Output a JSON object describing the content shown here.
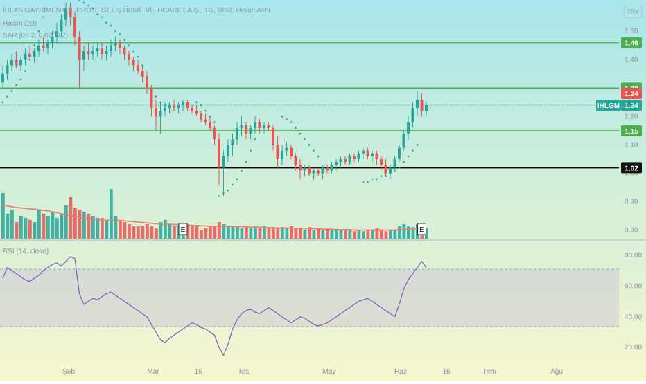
{
  "legend": {
    "title": "İHLAS GAYRİMENKUL PROJE GELİŞTİRME VE TİCARET A.Ş., 1G, BIST, Heikin Ashi",
    "volume": "Hacim (20)",
    "sar": "SAR (0.02, 0.02, 0.2)",
    "rsi": "RSI (14, close)"
  },
  "currency": "TRY",
  "colors": {
    "up": "#26a69a",
    "down": "#ef5350",
    "horizontal_line": "#4caf50",
    "support_line": "#000000",
    "volume_ma": "#ef7c6a",
    "rsi_line": "#7e57c2",
    "sar_dots": "#26a69a"
  },
  "chart_data": [
    {
      "type": "candlestick",
      "ticker": "IHLGM",
      "x_ticks": [
        "Şub",
        "Mar",
        "16",
        "Nis",
        "May",
        "Haz",
        "16",
        "Tem",
        "Ağu"
      ],
      "y_ticks": [
        "1.50",
        "1.40",
        "1.30",
        "1.20",
        "1.10",
        "1.00",
        "0.90",
        "0.80"
      ],
      "ylim": [
        0.77,
        1.61
      ],
      "horizontal_lines": [
        {
          "value": 1.46,
          "label": "1.46",
          "kind": "resistance"
        },
        {
          "value": 1.3,
          "label": "1.30",
          "kind": "resistance"
        },
        {
          "value": 1.15,
          "label": "1.15",
          "kind": "support"
        },
        {
          "value": 1.02,
          "label": "1.02",
          "kind": "major-support"
        }
      ],
      "price_labels": [
        {
          "value": 1.24,
          "label": "1.24",
          "kind": "last-price"
        },
        {
          "value": 1.24,
          "label": "1.24",
          "kind": "ticker-price"
        }
      ],
      "candles": {
        "columns": [
          "open",
          "high",
          "low",
          "close"
        ],
        "rows": [
          [
            1.32,
            1.38,
            1.3,
            1.35
          ],
          [
            1.35,
            1.4,
            1.33,
            1.38
          ],
          [
            1.38,
            1.42,
            1.36,
            1.4
          ],
          [
            1.4,
            1.43,
            1.37,
            1.38
          ],
          [
            1.38,
            1.41,
            1.36,
            1.4
          ],
          [
            1.4,
            1.44,
            1.38,
            1.42
          ],
          [
            1.42,
            1.45,
            1.4,
            1.41
          ],
          [
            1.41,
            1.44,
            1.39,
            1.43
          ],
          [
            1.43,
            1.47,
            1.41,
            1.45
          ],
          [
            1.45,
            1.48,
            1.43,
            1.44
          ],
          [
            1.44,
            1.47,
            1.42,
            1.46
          ],
          [
            1.46,
            1.5,
            1.44,
            1.48
          ],
          [
            1.48,
            1.53,
            1.46,
            1.5
          ],
          [
            1.5,
            1.56,
            1.48,
            1.54
          ],
          [
            1.54,
            1.6,
            1.52,
            1.58
          ],
          [
            1.58,
            1.6,
            1.52,
            1.55
          ],
          [
            1.55,
            1.57,
            1.45,
            1.48
          ],
          [
            1.48,
            1.5,
            1.3,
            1.4
          ],
          [
            1.4,
            1.45,
            1.36,
            1.43
          ],
          [
            1.43,
            1.46,
            1.4,
            1.42
          ],
          [
            1.42,
            1.45,
            1.4,
            1.43
          ],
          [
            1.43,
            1.46,
            1.41,
            1.44
          ],
          [
            1.44,
            1.46,
            1.4,
            1.42
          ],
          [
            1.42,
            1.45,
            1.4,
            1.43
          ],
          [
            1.43,
            1.47,
            1.41,
            1.45
          ],
          [
            1.45,
            1.48,
            1.43,
            1.46
          ],
          [
            1.46,
            1.47,
            1.42,
            1.44
          ],
          [
            1.44,
            1.45,
            1.4,
            1.42
          ],
          [
            1.42,
            1.43,
            1.38,
            1.4
          ],
          [
            1.4,
            1.41,
            1.36,
            1.38
          ],
          [
            1.38,
            1.4,
            1.35,
            1.36
          ],
          [
            1.36,
            1.38,
            1.32,
            1.34
          ],
          [
            1.34,
            1.36,
            1.28,
            1.3
          ],
          [
            1.3,
            1.31,
            1.2,
            1.23
          ],
          [
            1.23,
            1.26,
            1.15,
            1.2
          ],
          [
            1.2,
            1.25,
            1.14,
            1.22
          ],
          [
            1.22,
            1.25,
            1.2,
            1.23
          ],
          [
            1.23,
            1.25,
            1.21,
            1.24
          ],
          [
            1.24,
            1.26,
            1.22,
            1.23
          ],
          [
            1.23,
            1.25,
            1.21,
            1.24
          ],
          [
            1.24,
            1.26,
            1.22,
            1.25
          ],
          [
            1.25,
            1.26,
            1.22,
            1.23
          ],
          [
            1.23,
            1.24,
            1.21,
            1.22
          ],
          [
            1.22,
            1.24,
            1.2,
            1.21
          ],
          [
            1.21,
            1.22,
            1.18,
            1.19
          ],
          [
            1.19,
            1.21,
            1.17,
            1.18
          ],
          [
            1.18,
            1.2,
            1.15,
            1.16
          ],
          [
            1.16,
            1.17,
            1.1,
            1.12
          ],
          [
            1.12,
            1.14,
            0.96,
            1.02
          ],
          [
            1.02,
            1.08,
            0.92,
            1.06
          ],
          [
            1.06,
            1.12,
            1.04,
            1.1
          ],
          [
            1.1,
            1.14,
            1.06,
            1.12
          ],
          [
            1.12,
            1.18,
            1.1,
            1.16
          ],
          [
            1.16,
            1.2,
            1.13,
            1.17
          ],
          [
            1.17,
            1.18,
            1.12,
            1.14
          ],
          [
            1.14,
            1.17,
            1.12,
            1.16
          ],
          [
            1.16,
            1.2,
            1.14,
            1.18
          ],
          [
            1.18,
            1.19,
            1.14,
            1.16
          ],
          [
            1.16,
            1.18,
            1.14,
            1.17
          ],
          [
            1.17,
            1.18,
            1.15,
            1.16
          ],
          [
            1.16,
            1.17,
            1.08,
            1.1
          ],
          [
            1.1,
            1.13,
            1.02,
            1.05
          ],
          [
            1.05,
            1.1,
            1.03,
            1.08
          ],
          [
            1.08,
            1.11,
            1.06,
            1.09
          ],
          [
            1.09,
            1.1,
            1.05,
            1.06
          ],
          [
            1.06,
            1.07,
            1.01,
            1.03
          ],
          [
            1.03,
            1.05,
            0.98,
            1.01
          ],
          [
            1.01,
            1.03,
            0.99,
            1.02
          ],
          [
            1.02,
            1.03,
            0.99,
            1.0
          ],
          [
            1.0,
            1.02,
            0.98,
            1.01
          ],
          [
            1.01,
            1.02,
            0.99,
            1.0
          ],
          [
            1.0,
            1.03,
            0.98,
            1.02
          ],
          [
            1.02,
            1.03,
            1.0,
            1.01
          ],
          [
            1.01,
            1.04,
            1.0,
            1.03
          ],
          [
            1.03,
            1.05,
            1.01,
            1.04
          ],
          [
            1.04,
            1.06,
            1.02,
            1.05
          ],
          [
            1.05,
            1.06,
            1.03,
            1.04
          ],
          [
            1.04,
            1.07,
            1.03,
            1.06
          ],
          [
            1.06,
            1.07,
            1.04,
            1.05
          ],
          [
            1.05,
            1.08,
            1.04,
            1.07
          ],
          [
            1.07,
            1.09,
            1.05,
            1.08
          ],
          [
            1.08,
            1.09,
            1.05,
            1.06
          ],
          [
            1.06,
            1.08,
            1.04,
            1.07
          ],
          [
            1.07,
            1.08,
            1.03,
            1.05
          ],
          [
            1.05,
            1.06,
            1.01,
            1.03
          ],
          [
            1.03,
            1.05,
            0.99,
            1.0
          ],
          [
            1.0,
            1.03,
            0.98,
            1.02
          ],
          [
            1.02,
            1.06,
            1.01,
            1.05
          ],
          [
            1.05,
            1.1,
            1.04,
            1.09
          ],
          [
            1.09,
            1.15,
            1.08,
            1.14
          ],
          [
            1.14,
            1.2,
            1.12,
            1.18
          ],
          [
            1.18,
            1.25,
            1.16,
            1.23
          ],
          [
            1.23,
            1.29,
            1.2,
            1.26
          ],
          [
            1.26,
            1.28,
            1.2,
            1.22
          ],
          [
            1.22,
            1.25,
            1.2,
            1.24
          ]
        ]
      },
      "sar": [
        1.25,
        1.27,
        1.29,
        1.31,
        1.33,
        1.36,
        1.4,
        1.45,
        1.5,
        1.55,
        null,
        null,
        null,
        null,
        null,
        null,
        1.62,
        1.61,
        1.6,
        1.59,
        1.58,
        1.56,
        1.55,
        1.53,
        1.52,
        1.5,
        1.49,
        1.47,
        1.45,
        1.43,
        1.41,
        1.38,
        1.34,
        1.3,
        1.27,
        1.25,
        1.24,
        null,
        null,
        null,
        null,
        null,
        null,
        1.25,
        1.24,
        1.22,
        1.2,
        1.18,
        0.92,
        0.93,
        0.94,
        0.96,
        0.98,
        1.01,
        1.04,
        1.08,
        1.12,
        null,
        null,
        null,
        null,
        null,
        1.2,
        1.19,
        1.18,
        1.16,
        1.14,
        1.12,
        1.1,
        1.08,
        1.06,
        null,
        null,
        null,
        null,
        null,
        null,
        null,
        null,
        null,
        0.97,
        0.97,
        0.98,
        0.98,
        0.99,
        0.99,
        1.0,
        1.01,
        1.02,
        1.04,
        1.06,
        1.08,
        1.1,
        null,
        null
      ],
      "volume": {
        "ma_period": 20,
        "values": [
          110,
          60,
          70,
          40,
          55,
          50,
          45,
          40,
          70,
          60,
          55,
          65,
          50,
          60,
          80,
          100,
          75,
          70,
          65,
          60,
          55,
          50,
          50,
          45,
          120,
          55,
          45,
          40,
          35,
          30,
          30,
          30,
          35,
          30,
          25,
          40,
          45,
          35,
          30,
          30,
          25,
          35,
          30,
          30,
          20,
          25,
          30,
          30,
          40,
          35,
          30,
          28,
          30,
          25,
          30,
          25,
          30,
          25,
          30,
          28,
          25,
          25,
          28,
          25,
          30,
          25,
          25,
          22,
          28,
          20,
          25,
          20,
          22,
          20,
          22,
          20,
          20,
          20,
          18,
          20,
          18,
          20,
          22,
          25,
          22,
          18,
          20,
          22,
          30,
          35,
          30,
          28,
          35,
          30,
          25
        ],
        "ma": [
          80,
          79,
          77,
          75,
          74,
          73,
          72,
          71,
          70,
          68,
          67,
          65,
          63,
          60,
          58,
          56,
          54,
          52,
          50,
          48,
          47,
          46,
          45,
          44,
          45,
          45,
          44,
          43,
          42,
          41,
          40,
          39,
          38,
          37,
          36,
          36,
          35,
          35,
          34,
          34,
          33,
          33,
          32,
          32,
          31,
          31,
          30,
          30,
          30,
          30,
          30,
          29,
          29,
          29,
          28,
          28,
          28,
          28,
          27,
          27,
          27,
          26,
          26,
          26,
          26,
          25,
          25,
          25,
          24,
          24,
          24,
          23,
          23,
          23,
          22,
          22,
          22,
          22,
          21,
          21,
          21,
          21,
          21,
          21,
          21,
          21,
          21,
          21,
          22,
          22,
          23,
          23,
          24,
          24,
          24
        ],
        "earnings_markers": [
          "E",
          "E"
        ]
      }
    },
    {
      "type": "line",
      "name": "RSI",
      "y_ticks": [
        "80.00",
        "60.00",
        "40.00",
        "20.00"
      ],
      "ylim": [
        12,
        84
      ],
      "bands": [
        70,
        30
      ],
      "values": [
        65,
        72,
        70,
        68,
        66,
        64,
        63,
        65,
        67,
        70,
        72,
        74,
        75,
        73,
        76,
        79,
        78,
        55,
        48,
        50,
        52,
        51,
        53,
        55,
        56,
        54,
        52,
        50,
        48,
        46,
        44,
        42,
        40,
        35,
        30,
        25,
        23,
        26,
        28,
        30,
        32,
        34,
        36,
        35,
        33,
        32,
        30,
        28,
        20,
        15,
        22,
        32,
        38,
        42,
        44,
        45,
        43,
        42,
        44,
        46,
        44,
        42,
        40,
        38,
        36,
        38,
        40,
        39,
        37,
        35,
        34,
        35,
        36,
        38,
        40,
        42,
        44,
        46,
        48,
        50,
        51,
        52,
        50,
        48,
        46,
        44,
        42,
        40,
        48,
        58,
        64,
        68,
        72,
        76,
        72
      ]
    }
  ]
}
